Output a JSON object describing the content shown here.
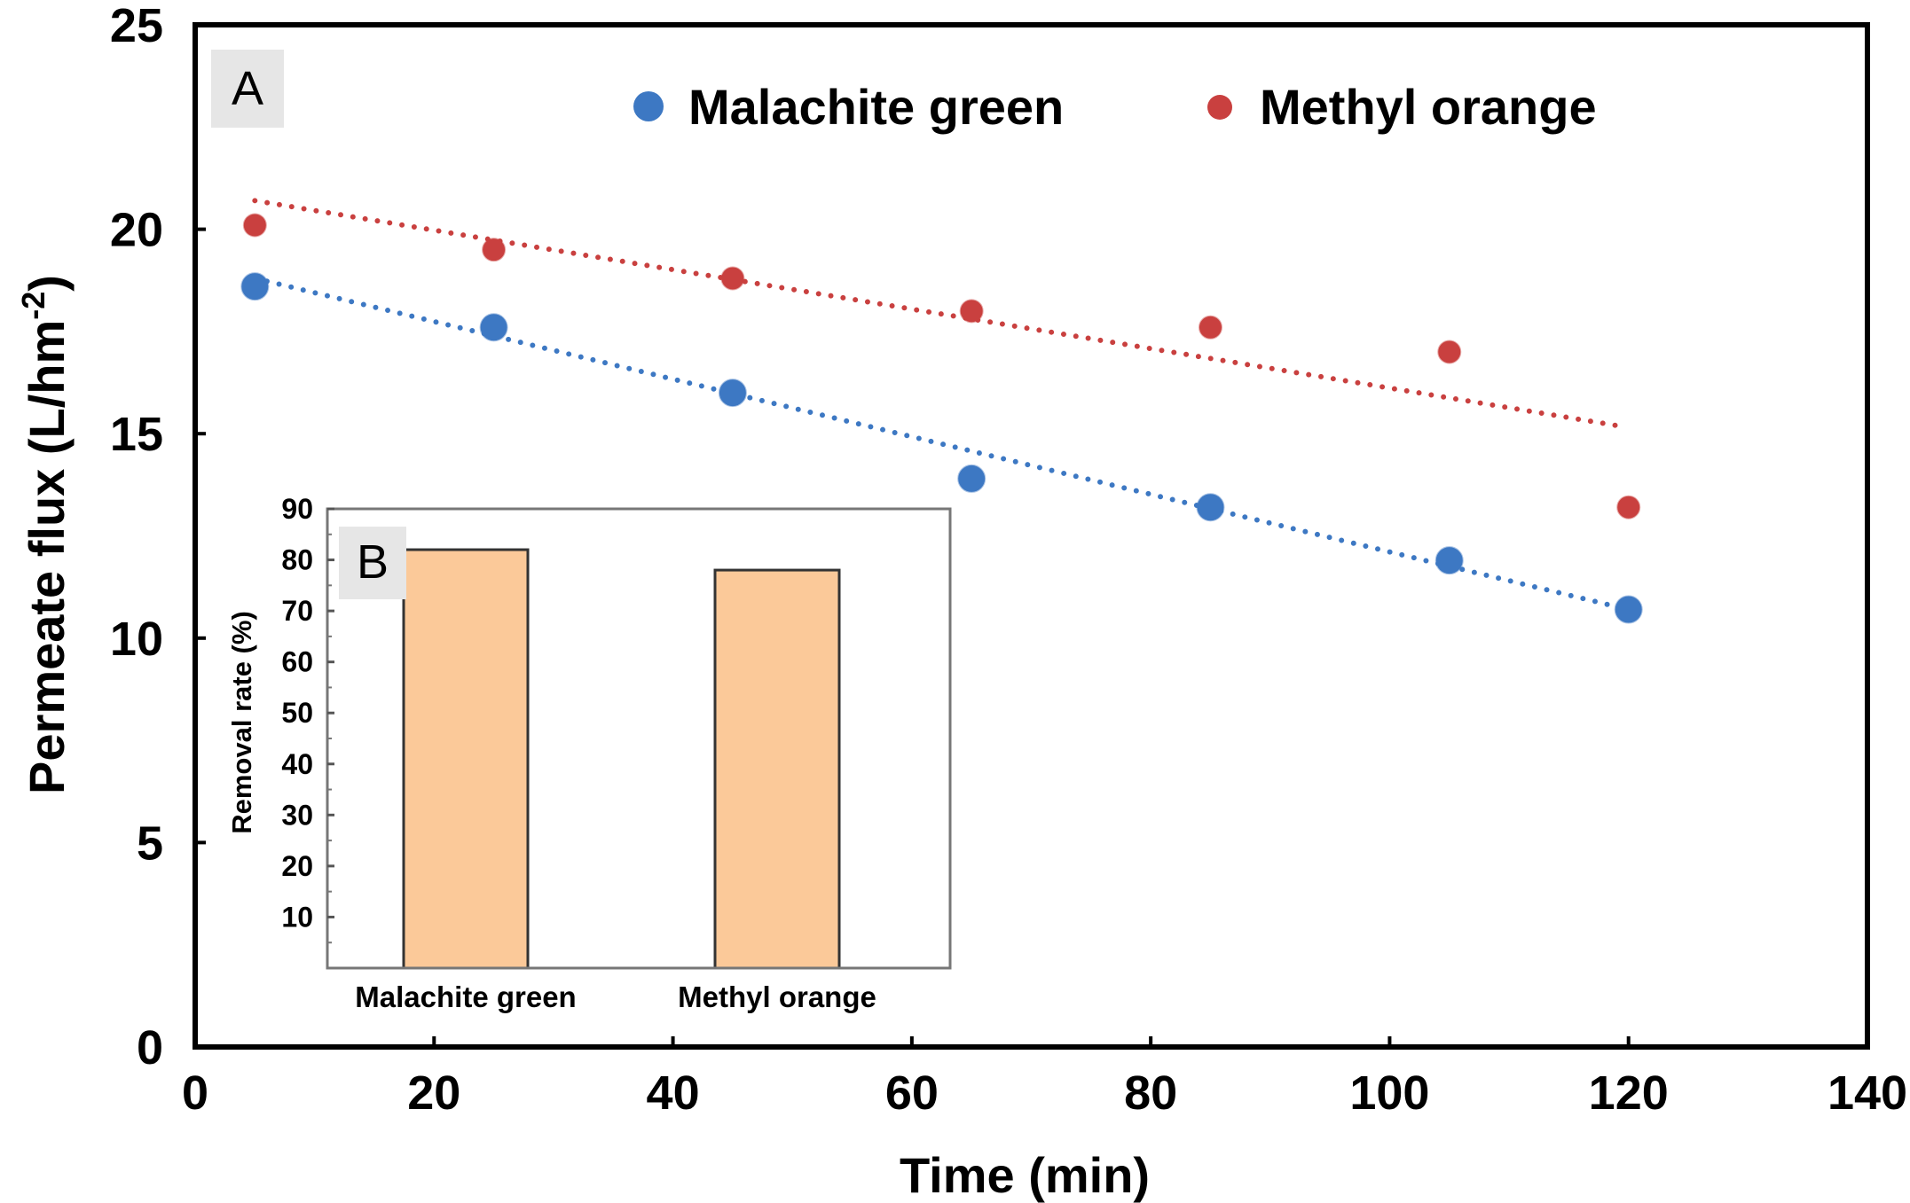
{
  "chart_data": [
    {
      "type": "scatter",
      "panel_label": "A",
      "xlabel": "Time (min)",
      "ylabel": "Permeate flux (L/hm",
      "ylabel_superscript": "-2",
      "ylabel_close": ")",
      "xlim": [
        0,
        140
      ],
      "ylim": [
        0,
        25
      ],
      "xticks": [
        "0",
        "20",
        "40",
        "60",
        "80",
        "100",
        "120",
        "140"
      ],
      "yticks": [
        "0",
        "5",
        "10",
        "15",
        "20",
        "25"
      ],
      "legend_position": "top",
      "series": [
        {
          "name": "Malachite green",
          "color": "#3d78c3",
          "x": [
            5,
            25,
            45,
            65,
            85,
            105,
            120
          ],
          "y": [
            18.6,
            17.6,
            16.0,
            13.9,
            13.2,
            11.9,
            10.7
          ],
          "trendline": {
            "style": "dotted",
            "x": [
              5,
              120
            ],
            "y": [
              18.8,
              10.7
            ]
          }
        },
        {
          "name": "Methyl orange",
          "color": "#c9403f",
          "x": [
            5,
            25,
            45,
            65,
            85,
            105,
            120
          ],
          "y": [
            20.1,
            19.5,
            18.8,
            18.0,
            17.6,
            17.0,
            13.2
          ],
          "trendline": {
            "style": "dotted",
            "x": [
              5,
              119
            ],
            "y": [
              20.7,
              15.2
            ]
          }
        }
      ]
    },
    {
      "type": "bar",
      "panel_label": "B",
      "ylabel": "Removal rate (%)",
      "ylim": [
        0,
        90
      ],
      "yticks": [
        "10",
        "20",
        "30",
        "40",
        "50",
        "60",
        "70",
        "80",
        "90"
      ],
      "categories": [
        "Malachite green",
        "Methyl orange"
      ],
      "values": [
        82,
        78
      ],
      "bar_color": "#fbc999"
    }
  ]
}
